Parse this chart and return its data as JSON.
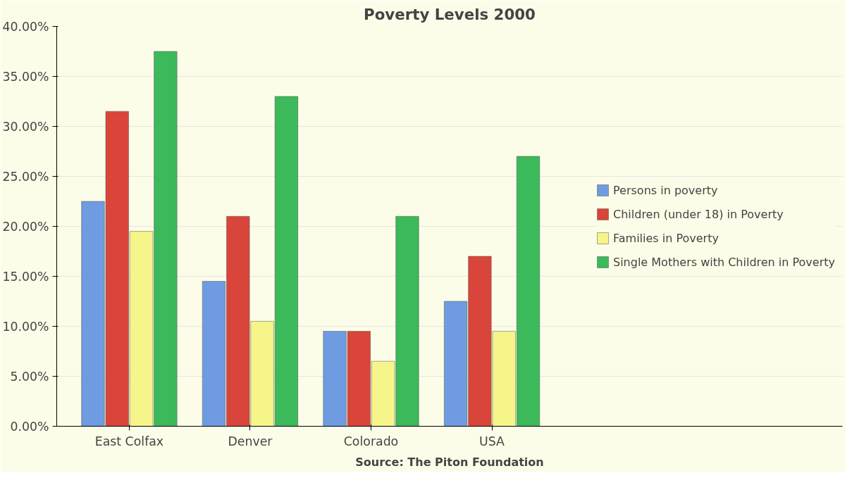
{
  "chart_data": {
    "type": "bar",
    "title": "Poverty Levels 2000",
    "categories": [
      "East Colfax",
      "Denver",
      "Colorado",
      "USA"
    ],
    "series": [
      {
        "name": "Persons in poverty",
        "color": "#6f9be0",
        "values": [
          22.5,
          14.5,
          9.5,
          12.5
        ]
      },
      {
        "name": "Children (under 18) in Poverty",
        "color": "#d9453a",
        "values": [
          31.5,
          21,
          9.5,
          17
        ]
      },
      {
        "name": "Families in Poverty",
        "color": "#f5f58a",
        "values": [
          19.5,
          10.5,
          6.5,
          9.5
        ]
      },
      {
        "name": "Single Mothers with Children in Poverty",
        "color": "#3cb95a",
        "values": [
          37.5,
          33,
          21,
          27
        ]
      }
    ],
    "ylim": [
      0,
      40
    ],
    "yticks": [
      {
        "value": 0,
        "label": "0.00%"
      },
      {
        "value": 5,
        "label": "5.00%"
      },
      {
        "value": 10,
        "label": "10.00%"
      },
      {
        "value": 15,
        "label": "15.00%"
      },
      {
        "value": 20,
        "label": "20.00%"
      },
      {
        "value": 25,
        "label": "25.00%"
      },
      {
        "value": 30,
        "label": "30.00%"
      },
      {
        "value": 35,
        "label": "35.00%"
      },
      {
        "value": 40,
        "label": "40.00%"
      }
    ],
    "grid": "y",
    "legend": "right",
    "annotations": [
      "Source: The Piton Foundation"
    ]
  }
}
